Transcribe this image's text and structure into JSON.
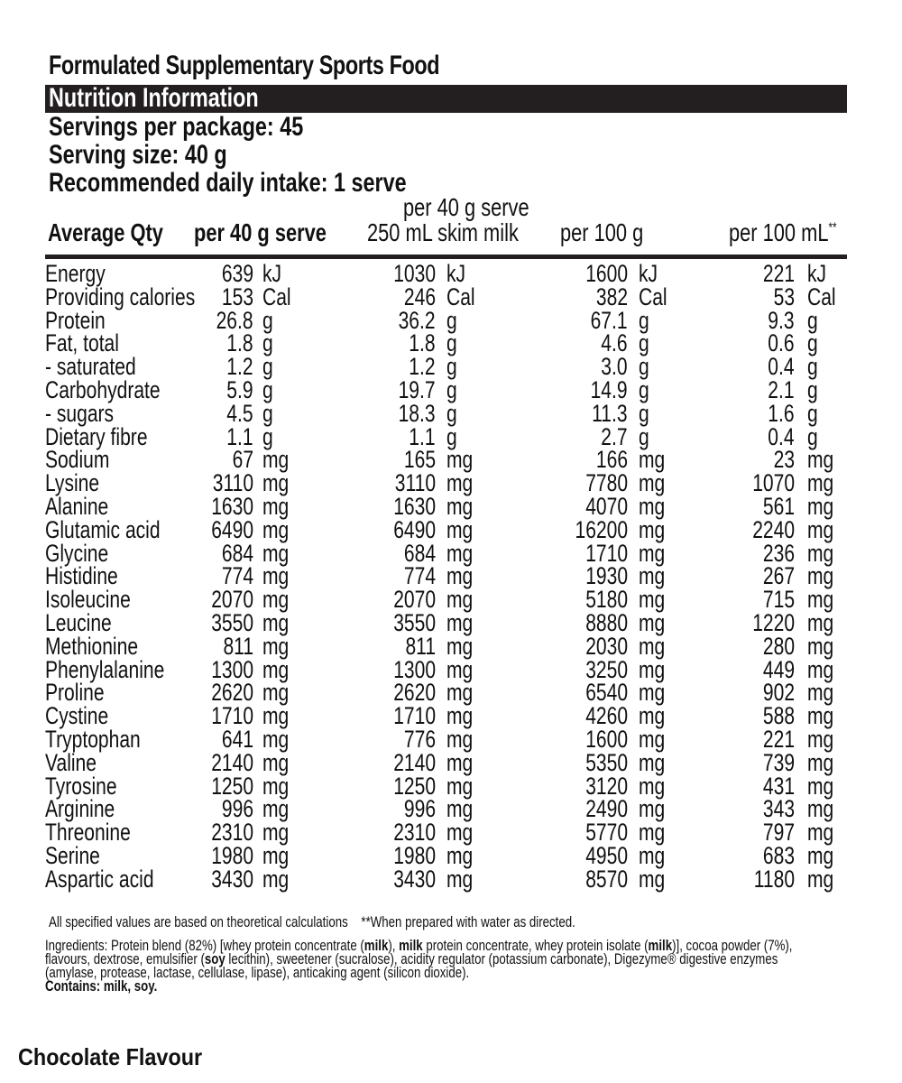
{
  "title": "Formulated Supplementary Sports Food",
  "section_header": "Nutrition Information",
  "servings_per_package": "Servings per package: 45",
  "serving_size": "Serving size: 40 g",
  "recommended_intake": "Recommended daily intake: 1 serve",
  "columns": {
    "name": "Average Qty",
    "col1": "per 40 g serve",
    "col2_line1": "per 40 g serve",
    "col2_line2": "250 mL skim milk",
    "col3": "per 100 g",
    "col4": "per 100 mL",
    "col4_marker": "**"
  },
  "rows": [
    {
      "name": "Energy",
      "v": [
        "639",
        "1030",
        "1600",
        "221"
      ],
      "u": "kJ"
    },
    {
      "name": "Providing calories",
      "v": [
        "153",
        "246",
        "382",
        "53"
      ],
      "u": "Cal"
    },
    {
      "name": "Protein",
      "v": [
        "26.8",
        "36.2",
        "67.1",
        "9.3"
      ],
      "u": "g"
    },
    {
      "name": "Fat, total",
      "v": [
        "1.8",
        "1.8",
        "4.6",
        "0.6"
      ],
      "u": "g"
    },
    {
      "name": "- saturated",
      "v": [
        "1.2",
        "1.2",
        "3.0",
        "0.4"
      ],
      "u": "g"
    },
    {
      "name": "Carbohydrate",
      "v": [
        "5.9",
        "19.7",
        "14.9",
        "2.1"
      ],
      "u": "g"
    },
    {
      "name": "- sugars",
      "v": [
        "4.5",
        "18.3",
        "11.3",
        "1.6"
      ],
      "u": "g"
    },
    {
      "name": "Dietary fibre",
      "v": [
        "1.1",
        "1.1",
        "2.7",
        "0.4"
      ],
      "u": "g"
    },
    {
      "name": "Sodium",
      "v": [
        "67",
        "165",
        "166",
        "23"
      ],
      "u": "mg"
    },
    {
      "name": "Lysine",
      "v": [
        "3110",
        "3110",
        "7780",
        "1070"
      ],
      "u": "mg"
    },
    {
      "name": "Alanine",
      "v": [
        "1630",
        "1630",
        "4070",
        "561"
      ],
      "u": "mg"
    },
    {
      "name": "Glutamic acid",
      "v": [
        "6490",
        "6490",
        "16200",
        "2240"
      ],
      "u": "mg"
    },
    {
      "name": "Glycine",
      "v": [
        "684",
        "684",
        "1710",
        "236"
      ],
      "u": "mg"
    },
    {
      "name": "Histidine",
      "v": [
        "774",
        "774",
        "1930",
        "267"
      ],
      "u": "mg"
    },
    {
      "name": "Isoleucine",
      "v": [
        "2070",
        "2070",
        "5180",
        "715"
      ],
      "u": "mg"
    },
    {
      "name": "Leucine",
      "v": [
        "3550",
        "3550",
        "8880",
        "1220"
      ],
      "u": "mg"
    },
    {
      "name": "Methionine",
      "v": [
        "811",
        "811",
        "2030",
        "280"
      ],
      "u": "mg"
    },
    {
      "name": "Phenylalanine",
      "v": [
        "1300",
        "1300",
        "3250",
        "449"
      ],
      "u": "mg"
    },
    {
      "name": "Proline",
      "v": [
        "2620",
        "2620",
        "6540",
        "902"
      ],
      "u": "mg"
    },
    {
      "name": "Cystine",
      "v": [
        "1710",
        "1710",
        "4260",
        "588"
      ],
      "u": "mg"
    },
    {
      "name": "Tryptophan",
      "v": [
        "641",
        "776",
        "1600",
        "221"
      ],
      "u": "mg"
    },
    {
      "name": "Valine",
      "v": [
        "2140",
        "2140",
        "5350",
        "739"
      ],
      "u": "mg"
    },
    {
      "name": "Tyrosine",
      "v": [
        "1250",
        "1250",
        "3120",
        "431"
      ],
      "u": "mg"
    },
    {
      "name": "Arginine",
      "v": [
        "996",
        "996",
        "2490",
        "343"
      ],
      "u": "mg"
    },
    {
      "name": "Threonine",
      "v": [
        "2310",
        "2310",
        "5770",
        "797"
      ],
      "u": "mg"
    },
    {
      "name": "Serine",
      "v": [
        "1980",
        "1980",
        "4950",
        "683"
      ],
      "u": "mg"
    },
    {
      "name": "Aspartic acid",
      "v": [
        "3430",
        "3430",
        "8570",
        "1180"
      ],
      "u": "mg"
    }
  ],
  "footnote": "All specified values are based on theoretical calculations    **When prepared with water as directed.",
  "ingredients": [
    {
      "t": "Ingredients: Protein blend (82%) [whey protein concentrate (",
      "b": false
    },
    {
      "t": "milk",
      "b": true
    },
    {
      "t": "), ",
      "b": false
    },
    {
      "t": "milk",
      "b": true
    },
    {
      "t": " protein concentrate, whey protein isolate (",
      "b": false
    },
    {
      "t": "milk",
      "b": true
    },
    {
      "t": ")], cocoa powder (7%), flavours, dextrose, emulsifier (",
      "b": false
    },
    {
      "t": "soy",
      "b": true
    },
    {
      "t": " lecithin), sweetener (sucralose), acidity regulator (potassium carbonate), Digezyme® digestive enzymes (amylase, protease, lactase, cellulase, lipase), anticaking agent (silicon dioxide).",
      "b": false
    }
  ],
  "contains": "Contains: milk, soy.",
  "flavour": "Chocolate Flavour"
}
